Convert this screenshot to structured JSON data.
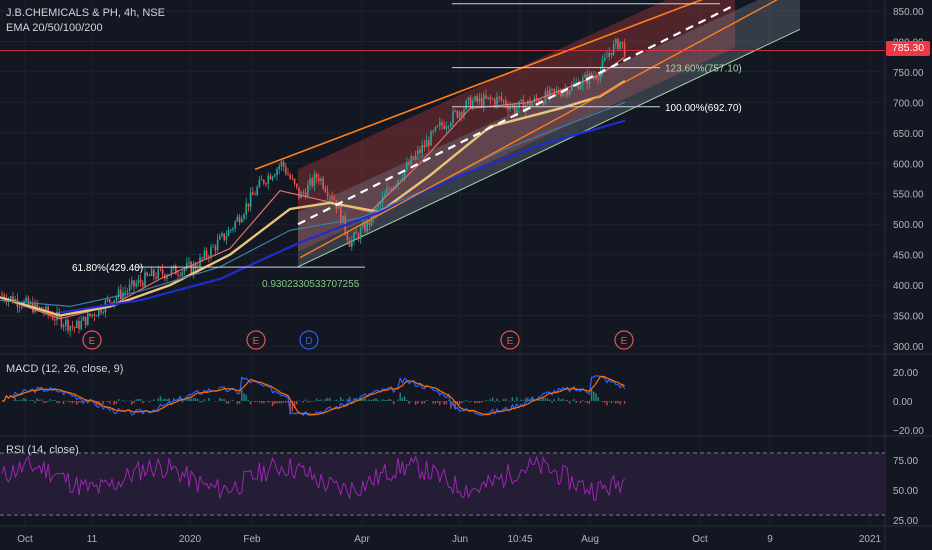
{
  "header": {
    "symbol_line": "J.B.CHEMICALS & PH, 4h, NSE",
    "indicator_line": "EMA 20/50/100/200"
  },
  "colors": {
    "background": "#131722",
    "up": "#26a69a",
    "down": "#ef5350",
    "ema20": "#e46d6d",
    "ema50": "#e9c47a",
    "ema100": "#3f7fa6",
    "ema200": "#1f2ccf",
    "orange_line": "#ff7d1a",
    "macd": "#2962ff",
    "signal": "#ff6d00",
    "rsi": "#9c27b0",
    "price_tag": "#f23645"
  },
  "current_price": "785.30",
  "price_axis_labels": [
    "850.00",
    "800.00",
    "750.00",
    "700.00",
    "650.00",
    "600.00",
    "550.00",
    "500.00",
    "450.00",
    "400.00",
    "350.00",
    "300.00"
  ],
  "macd_axis_labels": [
    "20.00",
    "0.00",
    "−20.00"
  ],
  "rsi_axis_labels": [
    "75.00",
    "50.00",
    "25.00"
  ],
  "time_axis_labels": [
    "Oct",
    "11",
    "2020",
    "Feb",
    "Apr",
    "Jun",
    "10:45",
    "Aug",
    "Oct",
    "9",
    "2021"
  ],
  "fib_labels": {
    "f618": "61.80%(429.40)",
    "f1236": "123.60%(757.10)",
    "f100": "100.00%(692.70)",
    "channel": "0.930233053370725​5"
  },
  "events": [
    "E",
    "E",
    "D",
    "E",
    "E"
  ],
  "macd_title": "MACD (12, 26, close, 9)",
  "rsi_title": "RSI (14, close)",
  "chart_data": {
    "type": "candlestick",
    "title": "J.B.CHEMICALS & PH, 4h, NSE",
    "ylim": [
      290,
      870
    ],
    "x": [
      "Oct",
      "11",
      "2020",
      "Feb",
      "Apr",
      "Jun",
      "10:45",
      "Aug",
      "Oct",
      "9",
      "2021"
    ],
    "price_path": [
      [
        0,
        385
      ],
      [
        40,
        360
      ],
      [
        75,
        330
      ],
      [
        110,
        375
      ],
      [
        150,
        415
      ],
      [
        195,
        430
      ],
      [
        230,
        490
      ],
      [
        262,
        570
      ],
      [
        282,
        600
      ],
      [
        300,
        545
      ],
      [
        318,
        580
      ],
      [
        335,
        540
      ],
      [
        350,
        470
      ],
      [
        368,
        500
      ],
      [
        390,
        560
      ],
      [
        410,
        600
      ],
      [
        440,
        660
      ],
      [
        470,
        700
      ],
      [
        500,
        705
      ],
      [
        515,
        690
      ],
      [
        540,
        705
      ],
      [
        570,
        725
      ],
      [
        600,
        750
      ],
      [
        610,
        785
      ],
      [
        620,
        800
      ],
      [
        625,
        785
      ]
    ],
    "ema_series": [
      {
        "name": "EMA 20",
        "values": [
          [
            0,
            380
          ],
          [
            60,
            345
          ],
          [
            110,
            365
          ],
          [
            160,
            410
          ],
          [
            230,
            460
          ],
          [
            280,
            555
          ],
          [
            320,
            540
          ],
          [
            370,
            520
          ],
          [
            420,
            600
          ],
          [
            470,
            690
          ],
          [
            530,
            700
          ],
          [
            600,
            745
          ],
          [
            625,
            775
          ]
        ]
      },
      {
        "name": "EMA 50",
        "values": [
          [
            0,
            380
          ],
          [
            60,
            350
          ],
          [
            110,
            365
          ],
          [
            170,
            400
          ],
          [
            230,
            450
          ],
          [
            290,
            525
          ],
          [
            330,
            535
          ],
          [
            380,
            520
          ],
          [
            430,
            580
          ],
          [
            490,
            660
          ],
          [
            560,
            690
          ],
          [
            600,
            710
          ],
          [
            625,
            735
          ]
        ]
      },
      {
        "name": "EMA 100",
        "values": [
          [
            0,
            375
          ],
          [
            70,
            365
          ],
          [
            140,
            390
          ],
          [
            220,
            430
          ],
          [
            290,
            490
          ],
          [
            360,
            510
          ],
          [
            430,
            560
          ],
          [
            500,
            620
          ],
          [
            570,
            665
          ],
          [
            625,
            700
          ]
        ]
      },
      {
        "name": "EMA 200",
        "values": [
          [
            60,
            355
          ],
          [
            140,
            375
          ],
          [
            220,
            410
          ],
          [
            300,
            470
          ],
          [
            380,
            520
          ],
          [
            460,
            580
          ],
          [
            540,
            630
          ],
          [
            625,
            670
          ]
        ]
      }
    ],
    "fib_levels": [
      {
        "label": "61.80%(429.40)",
        "value": 429.4
      },
      {
        "label": "100.00%(692.70)",
        "value": 692.7
      },
      {
        "label": "123.60%(757.10)",
        "value": 757.1
      }
    ],
    "macd_range": [
      -20,
      20
    ],
    "rsi_range": [
      25,
      75
    ]
  }
}
